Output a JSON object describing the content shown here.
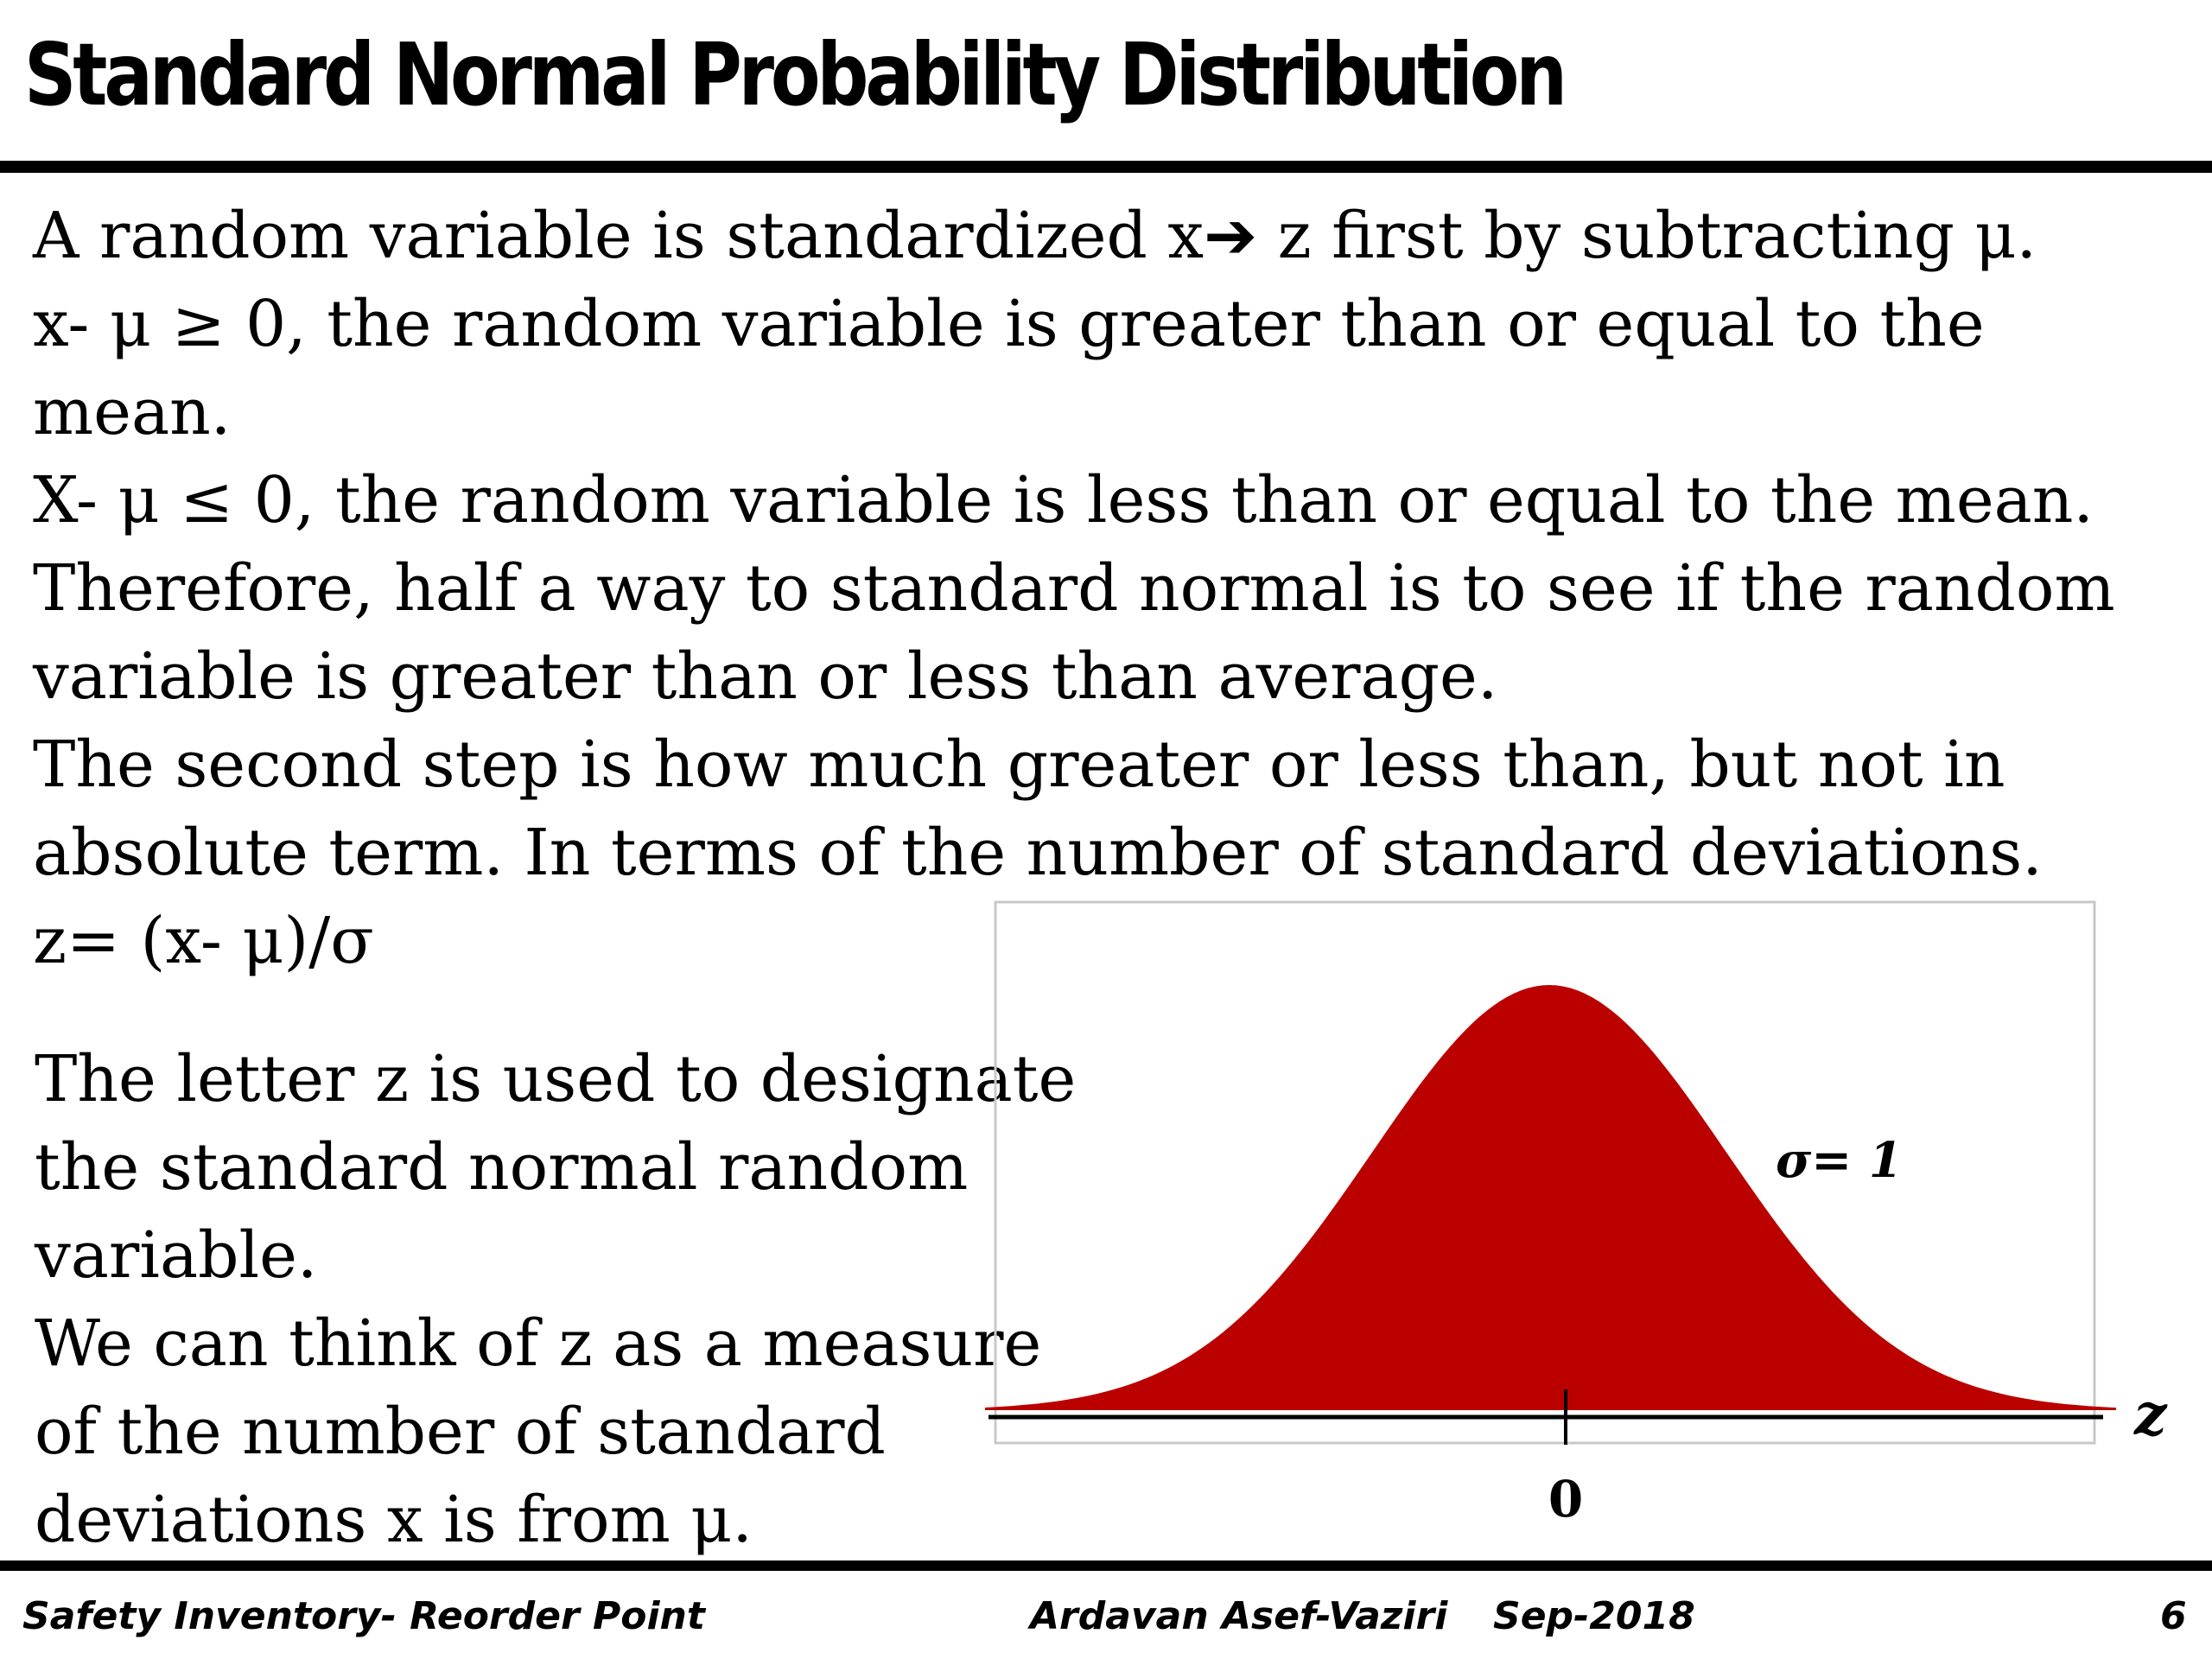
{
  "slide": {
    "title": "Standard Normal Probability Distribution",
    "paragraphs": [
      "A random variable is standardized x➔ z first by subtracting  μ.",
      "x- μ ≥ 0, the random variable is greater than or equal to the mean.",
      "X- μ ≤ 0, the random variable is less than or equal to the mean.",
      "Therefore, half a way to standard normal is to see if the random variable is greater than or less than average.",
      "The second step is how much greater or less than, but not in absolute term. In terms of the number of standard deviations.",
      "z= (x- μ)/σ"
    ],
    "note_paragraphs": [
      "The letter z is used to designate the standard normal random variable.",
      "We can think of z as a measure of the  number of standard deviations x is from μ."
    ]
  },
  "figure": {
    "sigma_label": "σ= 1",
    "axis_label": "z",
    "center_tick_label": "0",
    "fill_color": "#bb0000"
  },
  "footer": {
    "course": "Safety Inventory- Reorder Point",
    "author": "Ardavan Asef-Vaziri",
    "date": "Sep-2018",
    "page": "6"
  }
}
